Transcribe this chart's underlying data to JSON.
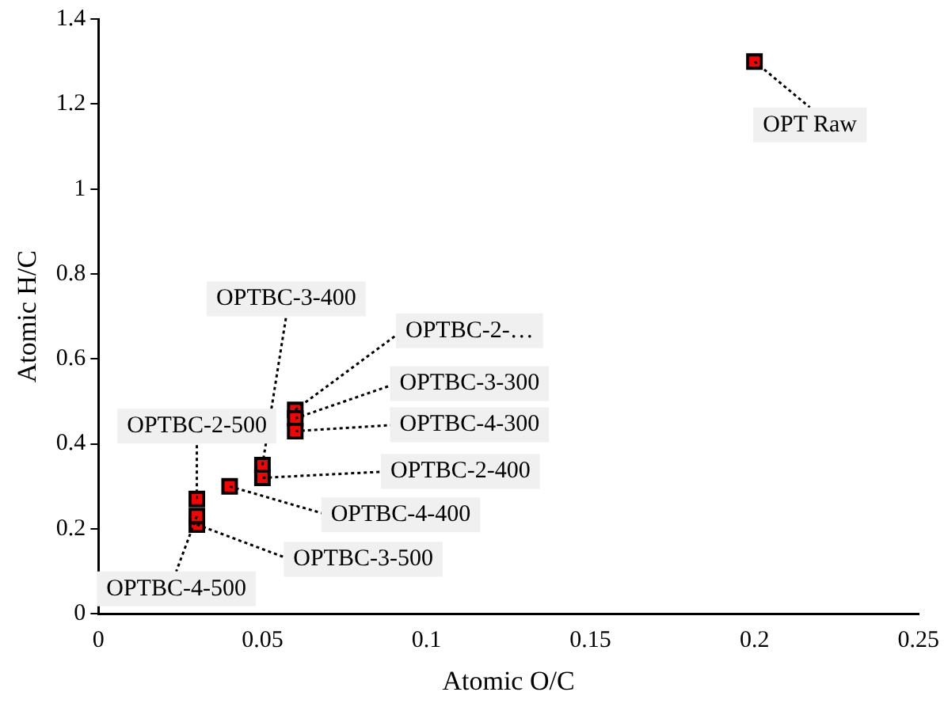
{
  "chart_data": {
    "type": "scatter",
    "xlabel": "Atomic O/C",
    "ylabel": "Atomic H/C",
    "series": [
      {
        "color": "#ff0000",
        "x": [
          0.2,
          0.05,
          0.06,
          0.06,
          0.06,
          0.05,
          0.04,
          0.03,
          0.03,
          0.03
        ],
        "values": [
          1.3,
          0.35,
          0.48,
          0.46,
          0.43,
          0.32,
          0.3,
          0.27,
          0.21,
          0.23
        ]
      }
    ],
    "annotations": [
      {
        "text": "OPT Raw",
        "x": 0.2,
        "y": 1.3
      },
      {
        "text": "OPTBC-3-400",
        "x": 0.05,
        "y": 0.35
      },
      {
        "text": "OPTBC-2-…",
        "x": 0.06,
        "y": 0.48
      },
      {
        "text": "OPTBC-3-300",
        "x": 0.06,
        "y": 0.46
      },
      {
        "text": "OPTBC-4-300",
        "x": 0.06,
        "y": 0.43
      },
      {
        "text": "OPTBC-2-400",
        "x": 0.05,
        "y": 0.32
      },
      {
        "text": "OPTBC-4-400",
        "x": 0.04,
        "y": 0.3
      },
      {
        "text": "OPTBC-2-500",
        "x": 0.03,
        "y": 0.27
      },
      {
        "text": "OPTBC-3-500",
        "x": 0.03,
        "y": 0.21
      },
      {
        "text": "OPTBC-4-500",
        "x": 0.03,
        "y": 0.23
      }
    ],
    "xlim": [
      0,
      0.25
    ],
    "xticks": [
      0,
      0.05,
      0.1,
      0.15,
      0.2,
      0.25
    ],
    "ylim": [
      0,
      1.4
    ],
    "yticks": [
      0,
      0.2,
      0.4,
      0.6,
      0.8,
      1,
      1.2,
      1.4
    ],
    "marker": "square",
    "grid": false,
    "legend": false
  }
}
